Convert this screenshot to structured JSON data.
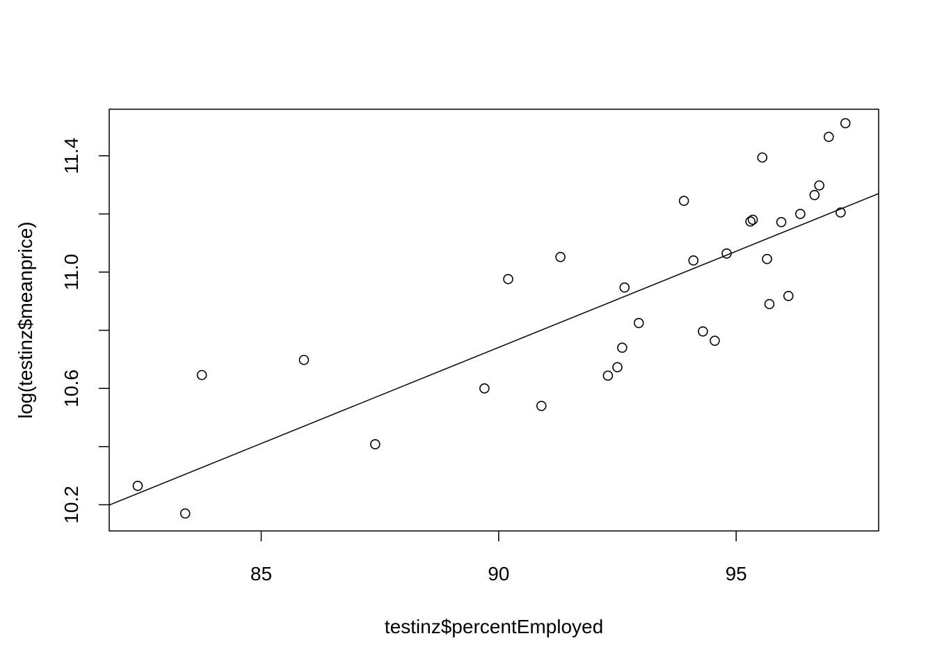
{
  "chart_data": {
    "type": "scatter",
    "title": "",
    "xlabel": "testinz$percentEmployed",
    "ylabel": "log(testinz$meanprice)",
    "xlim": [
      81.8,
      98.0
    ],
    "ylim": [
      10.11,
      11.56
    ],
    "x_ticks": [
      {
        "value": 85,
        "label": "85"
      },
      {
        "value": 90,
        "label": "90"
      },
      {
        "value": 95,
        "label": "95"
      }
    ],
    "y_ticks": [
      {
        "value": 10.2,
        "label": "10.2"
      },
      {
        "value": 10.4,
        "label": ""
      },
      {
        "value": 10.6,
        "label": "10.6"
      },
      {
        "value": 10.8,
        "label": ""
      },
      {
        "value": 11.0,
        "label": "11.0"
      },
      {
        "value": 11.2,
        "label": ""
      },
      {
        "value": 11.4,
        "label": "11.4"
      }
    ],
    "grid": false,
    "marker": "open-circle",
    "points": [
      {
        "x": 82.4,
        "y": 10.265
      },
      {
        "x": 83.4,
        "y": 10.17
      },
      {
        "x": 83.75,
        "y": 10.646
      },
      {
        "x": 85.9,
        "y": 10.698
      },
      {
        "x": 87.4,
        "y": 10.408
      },
      {
        "x": 89.7,
        "y": 10.6
      },
      {
        "x": 90.2,
        "y": 10.976
      },
      {
        "x": 90.9,
        "y": 10.54
      },
      {
        "x": 91.3,
        "y": 11.052
      },
      {
        "x": 92.3,
        "y": 10.644
      },
      {
        "x": 92.5,
        "y": 10.673
      },
      {
        "x": 92.6,
        "y": 10.74
      },
      {
        "x": 92.65,
        "y": 10.947
      },
      {
        "x": 92.95,
        "y": 10.825
      },
      {
        "x": 93.9,
        "y": 11.245
      },
      {
        "x": 94.1,
        "y": 11.04
      },
      {
        "x": 94.3,
        "y": 10.796
      },
      {
        "x": 94.55,
        "y": 10.764
      },
      {
        "x": 94.8,
        "y": 11.064
      },
      {
        "x": 95.3,
        "y": 11.174
      },
      {
        "x": 95.35,
        "y": 11.18
      },
      {
        "x": 95.55,
        "y": 11.394
      },
      {
        "x": 95.65,
        "y": 11.045
      },
      {
        "x": 95.7,
        "y": 10.89
      },
      {
        "x": 95.95,
        "y": 11.172
      },
      {
        "x": 96.1,
        "y": 10.918
      },
      {
        "x": 96.35,
        "y": 11.2
      },
      {
        "x": 96.65,
        "y": 11.265
      },
      {
        "x": 96.75,
        "y": 11.298
      },
      {
        "x": 96.95,
        "y": 11.465
      },
      {
        "x": 97.2,
        "y": 11.205
      },
      {
        "x": 97.3,
        "y": 11.512
      }
    ],
    "fit_line": {
      "x": [
        81.8,
        98.0
      ],
      "y": [
        10.199,
        11.27
      ]
    }
  }
}
